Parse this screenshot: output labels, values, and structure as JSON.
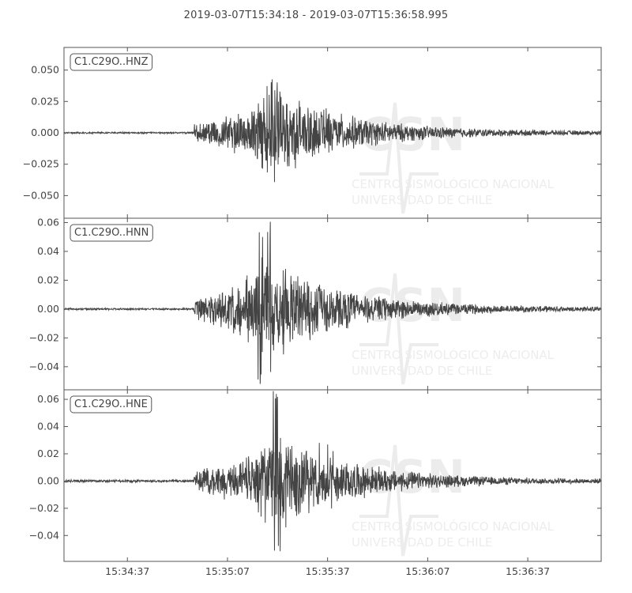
{
  "chart_data": {
    "type": "line",
    "title": "2019-03-07T15:34:18  -  2019-03-07T15:36:58.995",
    "x_tick_labels": [
      "15:34:37",
      "15:35:07",
      "15:35:37",
      "15:36:07",
      "15:36:37"
    ],
    "line_color": "#444444",
    "panels": [
      {
        "name": "C1.C29O..HNZ",
        "ylim": [
          -0.068,
          0.068
        ],
        "yticks": [
          0.05,
          0.025,
          0.0,
          -0.025,
          -0.05
        ],
        "ytick_labels": [
          "0.050",
          "0.025",
          "0.000",
          "−0.025",
          "−0.050"
        ],
        "event_onset_s": 39,
        "peak_s": 62,
        "peak_pos": 0.045,
        "peak_neg": -0.044,
        "pre_noise": 0.0006
      },
      {
        "name": "C1.C29O..HNN",
        "ylim": [
          -0.056,
          0.063
        ],
        "yticks": [
          0.06,
          0.04,
          0.02,
          0.0,
          -0.02,
          -0.04
        ],
        "ytick_labels": [
          "0.06",
          "0.04",
          "0.02",
          "0.00",
          "−0.02",
          "−0.04"
        ],
        "event_onset_s": 39,
        "peak_s": 60,
        "peak_pos": 0.062,
        "peak_neg": -0.054,
        "pre_noise": 0.0006
      },
      {
        "name": "C1.C29O..HNE",
        "ylim": [
          -0.059,
          0.067
        ],
        "yticks": [
          0.06,
          0.04,
          0.02,
          0.0,
          -0.02,
          -0.04
        ],
        "ytick_labels": [
          "0.06",
          "0.04",
          "0.02",
          "0.00",
          "−0.02",
          "−0.04"
        ],
        "event_onset_s": 39,
        "peak_s": 63,
        "peak_pos": 0.069,
        "peak_neg": -0.056,
        "pre_noise": 0.0009
      }
    ],
    "watermark": {
      "logo": "CSN",
      "text_line1": "CENTRO SISMOLÓGICO NACIONAL",
      "text_line2": "UNIVERSIDAD DE CHILE"
    }
  }
}
